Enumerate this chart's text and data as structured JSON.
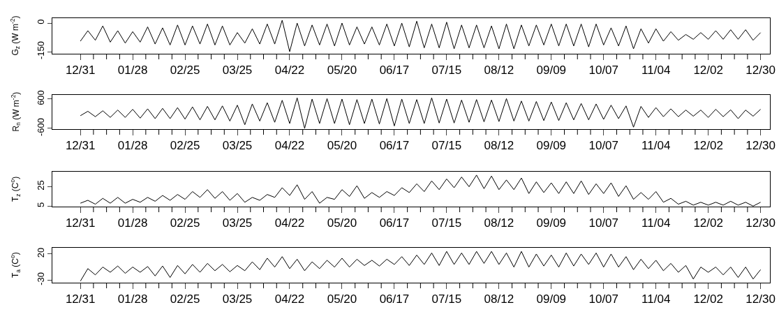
{
  "chart_data": [
    {
      "type": "line",
      "ylabel": "G$_{z}$ (W m$^{-2}$)",
      "color": "#000000",
      "categories": [
        "12/31",
        null,
        null,
        null,
        null,
        null,
        null,
        "01/28",
        null,
        null,
        null,
        null,
        null,
        null,
        "02/25",
        null,
        null,
        null,
        null,
        null,
        null,
        "03/25",
        null,
        null,
        null,
        null,
        null,
        null,
        "04/22",
        null,
        null,
        null,
        null,
        null,
        null,
        "05/20",
        null,
        null,
        null,
        null,
        null,
        null,
        "06/17",
        null,
        null,
        null,
        null,
        null,
        null,
        "07/15",
        null,
        null,
        null,
        null,
        null,
        null,
        "08/12",
        null,
        null,
        null,
        null,
        null,
        null,
        "09/09",
        null,
        null,
        null,
        null,
        null,
        null,
        "10/07",
        null,
        null,
        null,
        null,
        null,
        null,
        "11/04",
        null,
        null,
        null,
        null,
        null,
        null,
        "12/02",
        null,
        null,
        null,
        null,
        null,
        null,
        "12/30"
      ],
      "values": [
        -95,
        -40,
        -90,
        -15,
        -100,
        -40,
        -105,
        -45,
        -100,
        -20,
        -110,
        -25,
        -115,
        -10,
        -115,
        -15,
        -110,
        -5,
        -115,
        -15,
        -115,
        -50,
        -105,
        -30,
        -110,
        -5,
        -110,
        15,
        -150,
        0,
        -120,
        -10,
        -115,
        -5,
        -120,
        0,
        -115,
        -20,
        -110,
        -20,
        -115,
        -5,
        -120,
        0,
        -125,
        10,
        -130,
        -5,
        -130,
        5,
        -135,
        -10,
        -130,
        -10,
        -130,
        -15,
        -135,
        -5,
        -135,
        -10,
        -120,
        -10,
        -115,
        -5,
        -120,
        -5,
        -120,
        -5,
        -125,
        -5,
        -115,
        -25,
        -120,
        -15,
        -135,
        -30,
        -105,
        -30,
        -95,
        -45,
        -90,
        -60,
        -85,
        -50,
        -85,
        -40,
        -85,
        -35,
        -85,
        -35,
        -90,
        -50
      ],
      "ylim": [
        -161,
        26
      ],
      "yticks": [
        -150,
        0
      ]
    },
    {
      "type": "line",
      "ylabel": "R$_{n}$ (W m$^{-2}$)",
      "color": "#000000",
      "categories": [
        "12/31",
        null,
        null,
        null,
        null,
        null,
        null,
        "01/28",
        null,
        null,
        null,
        null,
        null,
        null,
        "02/25",
        null,
        null,
        null,
        null,
        null,
        null,
        "03/25",
        null,
        null,
        null,
        null,
        null,
        null,
        "04/22",
        null,
        null,
        null,
        null,
        null,
        null,
        "05/20",
        null,
        null,
        null,
        null,
        null,
        null,
        "06/17",
        null,
        null,
        null,
        null,
        null,
        null,
        "07/15",
        null,
        null,
        null,
        null,
        null,
        null,
        "08/12",
        null,
        null,
        null,
        null,
        null,
        null,
        "09/09",
        null,
        null,
        null,
        null,
        null,
        null,
        "10/07",
        null,
        null,
        null,
        null,
        null,
        null,
        "11/04",
        null,
        null,
        null,
        null,
        null,
        null,
        "12/02",
        null,
        null,
        null,
        null,
        null,
        null,
        "12/30"
      ],
      "values": [
        -80,
        100,
        -120,
        120,
        -150,
        150,
        -150,
        180,
        -180,
        200,
        -200,
        220,
        -200,
        250,
        -220,
        280,
        -250,
        300,
        -250,
        320,
        -300,
        350,
        -450,
        400,
        -300,
        450,
        -350,
        550,
        -400,
        650,
        -600,
        600,
        -400,
        620,
        -400,
        600,
        -450,
        580,
        -400,
        600,
        -420,
        620,
        -500,
        600,
        -400,
        580,
        -400,
        650,
        -380,
        600,
        -380,
        560,
        -350,
        580,
        -330,
        560,
        -320,
        620,
        -300,
        520,
        -300,
        500,
        -280,
        480,
        -280,
        450,
        -250,
        420,
        -250,
        400,
        -230,
        350,
        -200,
        320,
        -550,
        300,
        -150,
        250,
        -120,
        200,
        -120,
        150,
        -100,
        150,
        -150,
        180,
        -120,
        160,
        -200,
        150,
        -100,
        180
      ],
      "ylim": [
        -630,
        770
      ],
      "yticks": [
        -600,
        600
      ]
    },
    {
      "type": "line",
      "ylabel": "T$_{z}$ (C$^{o}$)",
      "color": "#000000",
      "categories": [
        "12/31",
        null,
        null,
        null,
        null,
        null,
        null,
        "01/28",
        null,
        null,
        null,
        null,
        null,
        null,
        "02/25",
        null,
        null,
        null,
        null,
        null,
        null,
        "03/25",
        null,
        null,
        null,
        null,
        null,
        null,
        "04/22",
        null,
        null,
        null,
        null,
        null,
        null,
        "05/20",
        null,
        null,
        null,
        null,
        null,
        null,
        "06/17",
        null,
        null,
        null,
        null,
        null,
        null,
        "07/15",
        null,
        null,
        null,
        null,
        null,
        null,
        "08/12",
        null,
        null,
        null,
        null,
        null,
        null,
        "09/09",
        null,
        null,
        null,
        null,
        null,
        null,
        "10/07",
        null,
        null,
        null,
        null,
        null,
        null,
        "11/04",
        null,
        null,
        null,
        null,
        null,
        null,
        "12/02",
        null,
        null,
        null,
        null,
        null,
        null,
        "12/30"
      ],
      "values": [
        8,
        11,
        7,
        13,
        8,
        14,
        8,
        12,
        9,
        14,
        10,
        16,
        11,
        17,
        12,
        20,
        14,
        22,
        13,
        20,
        11,
        18,
        9,
        14,
        11,
        17,
        14,
        24,
        16,
        27,
        12,
        20,
        8,
        14,
        12,
        22,
        15,
        26,
        13,
        19,
        14,
        20,
        16,
        24,
        19,
        28,
        20,
        31,
        22,
        33,
        24,
        35,
        25,
        37,
        23,
        36,
        22,
        32,
        22,
        34,
        18,
        30,
        19,
        29,
        18,
        30,
        18,
        31,
        17,
        28,
        18,
        29,
        15,
        26,
        12,
        19,
        12,
        20,
        9,
        13,
        7,
        10,
        6,
        9,
        6,
        9,
        6,
        10,
        6,
        9,
        5,
        9
      ],
      "ylim": [
        4.5,
        40.5
      ],
      "yticks": [
        5,
        25
      ]
    },
    {
      "type": "line",
      "ylabel": "T$_{a}$ (C$^{o}$)",
      "color": "#000000",
      "categories": [
        "12/31",
        null,
        null,
        null,
        null,
        null,
        null,
        "01/28",
        null,
        null,
        null,
        null,
        null,
        null,
        "02/25",
        null,
        null,
        null,
        null,
        null,
        null,
        "03/25",
        null,
        null,
        null,
        null,
        null,
        null,
        "04/22",
        null,
        null,
        null,
        null,
        null,
        null,
        "05/20",
        null,
        null,
        null,
        null,
        null,
        null,
        "06/17",
        null,
        null,
        null,
        null,
        null,
        null,
        "07/15",
        null,
        null,
        null,
        null,
        null,
        null,
        "08/12",
        null,
        null,
        null,
        null,
        null,
        null,
        "09/09",
        null,
        null,
        null,
        null,
        null,
        null,
        "10/07",
        null,
        null,
        null,
        null,
        null,
        null,
        "11/04",
        null,
        null,
        null,
        null,
        null,
        null,
        "12/02",
        null,
        null,
        null,
        null,
        null,
        null,
        "12/30"
      ],
      "values": [
        -32,
        -8,
        -20,
        -5,
        -15,
        -3,
        -17,
        -5,
        -15,
        -4,
        -22,
        -3,
        -25,
        -2,
        -18,
        0,
        -15,
        2,
        -12,
        0,
        -14,
        -2,
        -12,
        5,
        -10,
        12,
        -5,
        15,
        -8,
        10,
        -12,
        5,
        -8,
        8,
        -5,
        12,
        -5,
        10,
        -2,
        8,
        -3,
        10,
        0,
        15,
        -2,
        18,
        0,
        22,
        -2,
        25,
        0,
        22,
        0,
        25,
        2,
        25,
        0,
        22,
        -5,
        25,
        -5,
        20,
        -3,
        18,
        -5,
        22,
        -3,
        20,
        0,
        22,
        -5,
        20,
        -5,
        15,
        -10,
        10,
        -8,
        8,
        -12,
        2,
        -15,
        -2,
        -28,
        -5,
        -15,
        -5,
        -20,
        -5,
        -25,
        -5,
        -28,
        -10
      ],
      "ylim": [
        -35,
        32
      ],
      "yticks": [
        -30,
        20
      ]
    }
  ]
}
